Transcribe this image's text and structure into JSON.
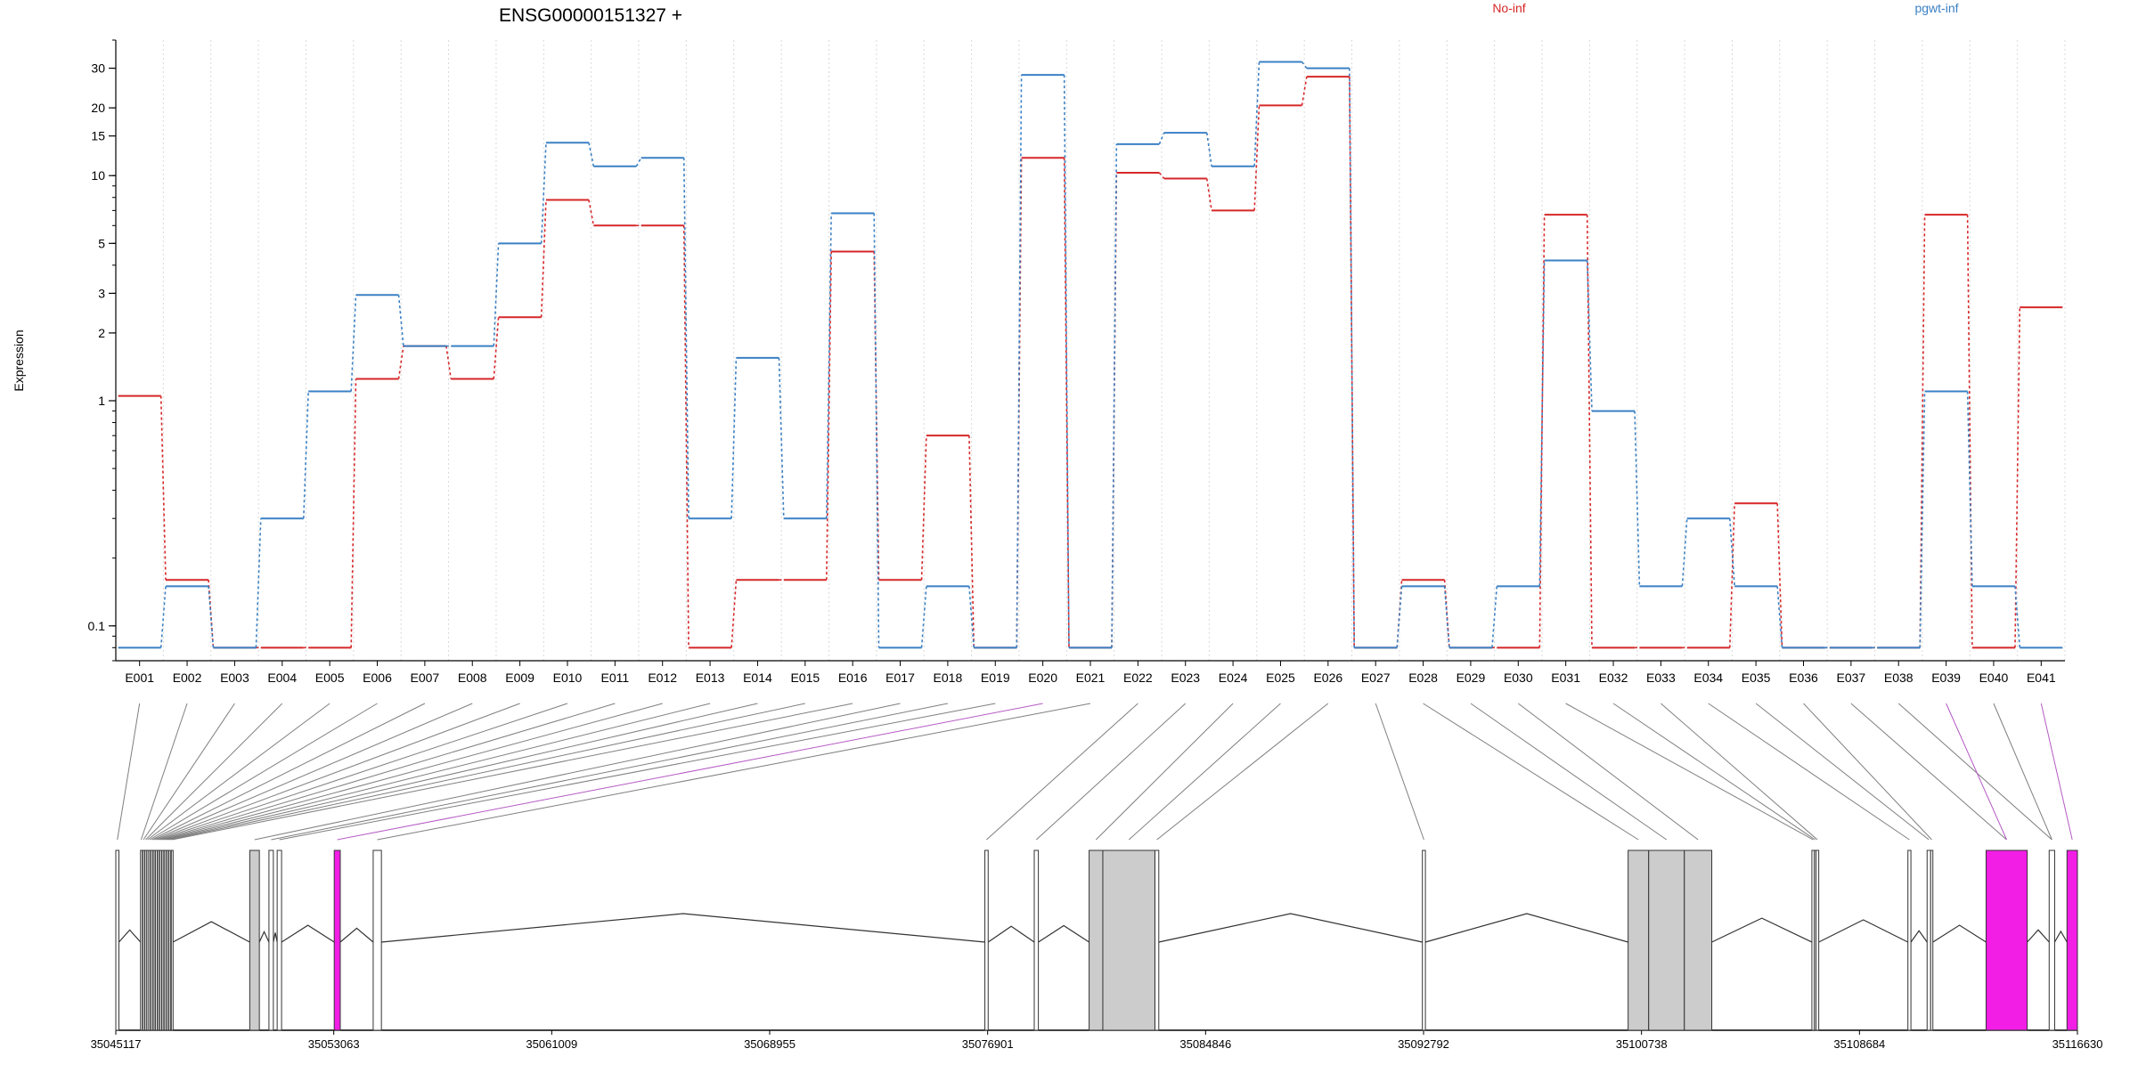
{
  "chart_data": {
    "type": "line",
    "title": "ENSG00000151327 +",
    "ylabel": "Expression",
    "xlabel": "",
    "y_scale": "log",
    "ylim": [
      0.07,
      40
    ],
    "yticks": [
      0.1,
      1,
      2,
      3,
      5,
      10,
      15,
      20,
      30
    ],
    "ytick_labels": [
      "0.1",
      "1",
      "2",
      "3",
      "5",
      "10",
      "15",
      "20",
      "30"
    ],
    "grid": "vertical dotted lines at each exon",
    "legend_placement": "top-right",
    "categories": [
      "E001",
      "E002",
      "E003",
      "E004",
      "E005",
      "E006",
      "E007",
      "E008",
      "E009",
      "E010",
      "E011",
      "E012",
      "E013",
      "E014",
      "E015",
      "E016",
      "E017",
      "E018",
      "E019",
      "E020",
      "E021",
      "E022",
      "E023",
      "E024",
      "E025",
      "E026",
      "E027",
      "E028",
      "E029",
      "E030",
      "E031",
      "E032",
      "E033",
      "E034",
      "E035",
      "E036",
      "E037",
      "E038",
      "E039",
      "E040",
      "E041"
    ],
    "series": [
      {
        "name": "No-inf",
        "color": "#d62728",
        "values": [
          1.05,
          0.16,
          0.08,
          0.08,
          0.08,
          1.25,
          1.75,
          1.25,
          2.35,
          7.8,
          6.0,
          6.0,
          0.08,
          0.16,
          0.16,
          4.6,
          0.16,
          0.7,
          0.08,
          12.0,
          0.08,
          10.3,
          9.7,
          7.0,
          20.5,
          27.5,
          0.08,
          0.16,
          0.08,
          0.08,
          6.7,
          0.08,
          0.08,
          0.08,
          0.35,
          0.08,
          0.08,
          0.08,
          6.7,
          0.08,
          2.6
        ]
      },
      {
        "name": "pgwt-inf",
        "color": "#3a80c4",
        "values": [
          0.08,
          0.15,
          0.08,
          0.3,
          1.1,
          2.95,
          1.75,
          1.75,
          5.0,
          14.0,
          11.0,
          12.0,
          0.3,
          1.55,
          0.3,
          6.8,
          0.08,
          0.15,
          0.08,
          28.0,
          0.08,
          13.8,
          15.5,
          11.0,
          32.0,
          30.0,
          0.08,
          0.15,
          0.08,
          0.15,
          4.2,
          0.9,
          0.15,
          0.3,
          0.15,
          0.08,
          0.08,
          0.08,
          1.1,
          0.15,
          0.08
        ]
      }
    ],
    "gene_model": {
      "coordinate_ticks": [
        35045117,
        35053063,
        35061009,
        35068955,
        35076901,
        35084846,
        35092792,
        35100738,
        35108684,
        35116630
      ],
      "coordinate_labels": [
        "35045117",
        "35053063",
        "35061009",
        "35068955",
        "35076901",
        "35084846",
        "35092792",
        "35100738",
        "35108684",
        "35116630"
      ],
      "exons": [
        {
          "id": "E001",
          "start": 35045117,
          "end": 35045230,
          "fill": "white"
        },
        {
          "id": "E002",
          "start": 35046018,
          "end": 35046060,
          "fill": "white"
        },
        {
          "id": "E003",
          "start": 35046100,
          "end": 35046150,
          "fill": "white"
        },
        {
          "id": "E004",
          "start": 35046180,
          "end": 35046230,
          "fill": "white"
        },
        {
          "id": "E005",
          "start": 35046250,
          "end": 35046300,
          "fill": "white"
        },
        {
          "id": "E006",
          "start": 35046320,
          "end": 35046380,
          "fill": "white"
        },
        {
          "id": "E007",
          "start": 35046400,
          "end": 35046460,
          "fill": "white"
        },
        {
          "id": "E008",
          "start": 35046480,
          "end": 35046540,
          "fill": "white"
        },
        {
          "id": "E009",
          "start": 35046560,
          "end": 35046620,
          "fill": "white"
        },
        {
          "id": "E010",
          "start": 35046640,
          "end": 35046700,
          "fill": "white"
        },
        {
          "id": "E011",
          "start": 35046720,
          "end": 35046780,
          "fill": "white"
        },
        {
          "id": "E012",
          "start": 35046800,
          "end": 35046860,
          "fill": "white"
        },
        {
          "id": "E013",
          "start": 35046880,
          "end": 35046940,
          "fill": "white"
        },
        {
          "id": "E014",
          "start": 35046960,
          "end": 35047020,
          "fill": "white"
        },
        {
          "id": "E015",
          "start": 35047040,
          "end": 35047100,
          "fill": "white"
        },
        {
          "id": "E016",
          "start": 35047140,
          "end": 35047200,
          "fill": "white"
        },
        {
          "id": "E017",
          "start": 35050000,
          "end": 35050350,
          "fill": "lightgray"
        },
        {
          "id": "E018",
          "start": 35050700,
          "end": 35050860,
          "fill": "white"
        },
        {
          "id": "E019",
          "start": 35051000,
          "end": 35051160,
          "fill": "white"
        },
        {
          "id": "E020",
          "start": 35053080,
          "end": 35053300,
          "fill": "magenta"
        },
        {
          "id": "E021",
          "start": 35054500,
          "end": 35054800,
          "fill": "white"
        },
        {
          "id": "E022",
          "start": 35076800,
          "end": 35076920,
          "fill": "white"
        },
        {
          "id": "E023",
          "start": 35078600,
          "end": 35078750,
          "fill": "white"
        },
        {
          "id": "E024",
          "start": 35080600,
          "end": 35081100,
          "fill": "lightgray"
        },
        {
          "id": "E025",
          "start": 35081100,
          "end": 35083000,
          "fill": "lightgray"
        },
        {
          "id": "E026",
          "start": 35083000,
          "end": 35083140,
          "fill": "white"
        },
        {
          "id": "E027",
          "start": 35092750,
          "end": 35092860,
          "fill": "white"
        },
        {
          "id": "E028",
          "start": 35100250,
          "end": 35101000,
          "fill": "lightgray"
        },
        {
          "id": "E029",
          "start": 35101000,
          "end": 35102300,
          "fill": "lightgray"
        },
        {
          "id": "E030",
          "start": 35102300,
          "end": 35103300,
          "fill": "lightgray"
        },
        {
          "id": "E031",
          "start": 35106950,
          "end": 35107040,
          "fill": "white"
        },
        {
          "id": "E032",
          "start": 35107040,
          "end": 35107100,
          "fill": "white"
        },
        {
          "id": "E033",
          "start": 35107100,
          "end": 35107200,
          "fill": "white"
        },
        {
          "id": "E034",
          "start": 35110450,
          "end": 35110560,
          "fill": "white"
        },
        {
          "id": "E035",
          "start": 35111150,
          "end": 35111280,
          "fill": "white"
        },
        {
          "id": "E036",
          "start": 35111280,
          "end": 35111360,
          "fill": "white"
        },
        {
          "id": "E037",
          "start": 35113300,
          "end": 35114800,
          "fill": "magenta"
        },
        {
          "id": "E038",
          "start": 35115600,
          "end": 35115800,
          "fill": "white"
        },
        {
          "id": "E039",
          "start": 35116250,
          "end": 35116630,
          "fill": "magenta"
        }
      ],
      "connections": [
        {
          "exon": "E001",
          "target": "E001",
          "color": "gray"
        },
        {
          "exon": "E002",
          "target": "E002",
          "color": "gray"
        },
        {
          "exon": "E003",
          "target": "E003",
          "color": "gray"
        },
        {
          "exon": "E004",
          "target": "E004",
          "color": "gray"
        },
        {
          "exon": "E005",
          "target": "E005",
          "color": "gray"
        },
        {
          "exon": "E006",
          "target": "E006",
          "color": "gray"
        },
        {
          "exon": "E007",
          "target": "E007",
          "color": "gray"
        },
        {
          "exon": "E008",
          "target": "E008",
          "color": "gray"
        },
        {
          "exon": "E009",
          "target": "E009",
          "color": "gray"
        },
        {
          "exon": "E010",
          "target": "E010",
          "color": "gray"
        },
        {
          "exon": "E011",
          "target": "E011",
          "color": "gray"
        },
        {
          "exon": "E012",
          "target": "E012",
          "color": "gray"
        },
        {
          "exon": "E013",
          "target": "E013",
          "color": "gray"
        },
        {
          "exon": "E014",
          "target": "E014",
          "color": "gray"
        },
        {
          "exon": "E015",
          "target": "E015",
          "color": "gray"
        },
        {
          "exon": "E016",
          "target": "E016",
          "color": "gray"
        },
        {
          "exon": "E017",
          "target": "E017",
          "color": "gray"
        },
        {
          "exon": "E018",
          "target": "E018",
          "color": "gray"
        },
        {
          "exon": "E019",
          "target": "E019",
          "color": "gray"
        },
        {
          "exon": "E020",
          "target": "E020",
          "color": "magenta"
        },
        {
          "exon": "E021",
          "target": "E021",
          "color": "gray"
        },
        {
          "exon": "E022",
          "target": "E022",
          "color": "gray"
        },
        {
          "exon": "E023",
          "target": "E023",
          "color": "gray"
        },
        {
          "exon": "E024",
          "target": "E024",
          "color": "gray"
        },
        {
          "exon": "E025",
          "target": "E025",
          "color": "gray"
        },
        {
          "exon": "E026",
          "target": "E026",
          "color": "gray"
        },
        {
          "exon": "E027",
          "target": "E027",
          "color": "gray"
        },
        {
          "exon": "E028",
          "target": "E028",
          "color": "gray"
        },
        {
          "exon": "E029",
          "target": "E029",
          "color": "gray"
        },
        {
          "exon": "E030",
          "target": "E030",
          "color": "gray"
        },
        {
          "exon": "E031",
          "target": "E031",
          "color": "gray"
        },
        {
          "exon": "E032",
          "target": "E032",
          "color": "gray"
        },
        {
          "exon": "E033",
          "target": "E033",
          "color": "gray"
        },
        {
          "exon": "E034",
          "target": "E034",
          "color": "gray"
        },
        {
          "exon": "E035",
          "target": "E035",
          "color": "gray"
        },
        {
          "exon": "E036",
          "target": "E036",
          "color": "gray"
        },
        {
          "exon": "E037",
          "target": "E037",
          "color": "gray"
        },
        {
          "exon": "E038",
          "target": "E038",
          "color": "gray"
        },
        {
          "exon": "E039",
          "target": "E037",
          "color": "magenta"
        },
        {
          "exon": "E040",
          "target": "E038",
          "color": "gray"
        },
        {
          "exon": "E041",
          "target": "E039",
          "color": "magenta"
        }
      ]
    }
  }
}
